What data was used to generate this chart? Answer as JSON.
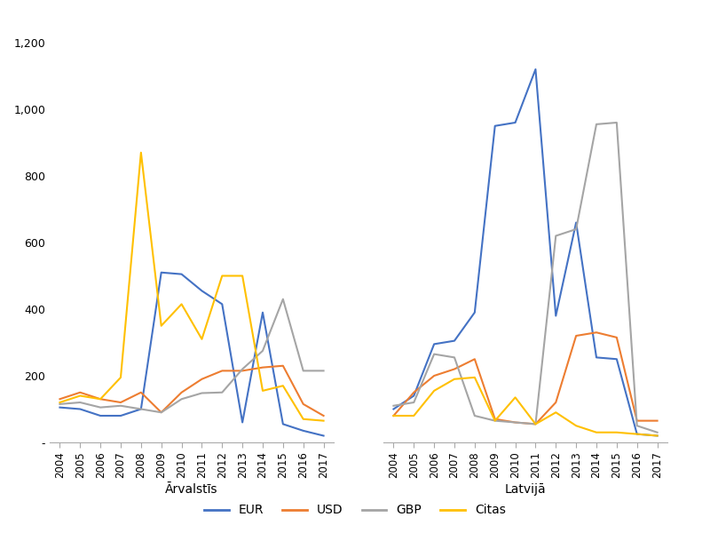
{
  "years": [
    2004,
    2005,
    2006,
    2007,
    2008,
    2009,
    2010,
    2011,
    2012,
    2013,
    2014,
    2015,
    2016,
    2017
  ],
  "arvalstis": {
    "EUR": [
      105,
      100,
      80,
      80,
      100,
      510,
      505,
      455,
      415,
      60,
      390,
      55,
      35,
      20
    ],
    "USD": [
      130,
      150,
      130,
      120,
      150,
      90,
      150,
      190,
      215,
      215,
      225,
      230,
      115,
      80
    ],
    "GBP": [
      115,
      120,
      105,
      110,
      100,
      90,
      130,
      148,
      150,
      220,
      275,
      430,
      215,
      215
    ],
    "Citas": [
      120,
      140,
      130,
      195,
      870,
      350,
      415,
      310,
      500,
      500,
      155,
      170,
      70,
      65
    ]
  },
  "latvija": {
    "EUR": [
      100,
      140,
      295,
      305,
      390,
      950,
      960,
      1120,
      380,
      660,
      255,
      250,
      25,
      20
    ],
    "USD": [
      80,
      150,
      200,
      220,
      250,
      70,
      60,
      55,
      120,
      320,
      330,
      315,
      65,
      65
    ],
    "GBP": [
      110,
      120,
      265,
      255,
      80,
      65,
      60,
      55,
      620,
      640,
      955,
      960,
      50,
      30
    ],
    "Citas": [
      80,
      80,
      155,
      190,
      195,
      65,
      135,
      55,
      90,
      50,
      30,
      30,
      25,
      20
    ]
  },
  "colors": {
    "EUR": "#4472C4",
    "USD": "#ED7D31",
    "GBP": "#A5A5A5",
    "Citas": "#FFC000"
  },
  "ylim": [
    0,
    1200
  ],
  "yticks": [
    0,
    200,
    400,
    600,
    800,
    1000,
    1200
  ],
  "ytick_labels": [
    "-",
    "200",
    "400",
    "600",
    "800",
    "1,000",
    "1,200"
  ],
  "xlabel_left": "Ārvalstīs",
  "xlabel_right": "Latvijā",
  "legend_labels": [
    "EUR",
    "USD",
    "GBP",
    "Citas"
  ],
  "background_color": "#FFFFFF",
  "linewidth": 1.5,
  "figsize": [
    8.0,
    6.0
  ],
  "dpi": 100
}
